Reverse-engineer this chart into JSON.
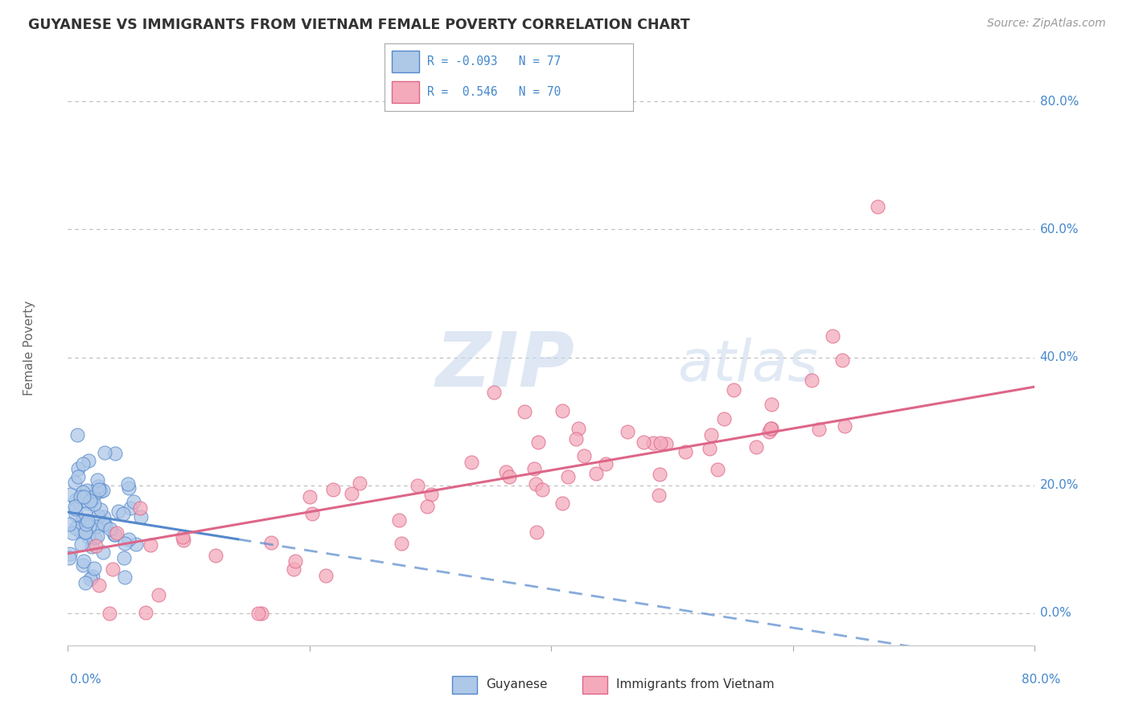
{
  "title": "GUYANESE VS IMMIGRANTS FROM VIETNAM FEMALE POVERTY CORRELATION CHART",
  "source": "Source: ZipAtlas.com",
  "ylabel": "Female Poverty",
  "xmin": 0.0,
  "xmax": 0.8,
  "ymin": -0.05,
  "ymax": 0.88,
  "xtick_vals": [
    0.0,
    0.2,
    0.4,
    0.6,
    0.8
  ],
  "xtick_labels_inner": [
    "",
    "",
    "",
    "",
    ""
  ],
  "ytick_vals": [
    0.0,
    0.2,
    0.4,
    0.6,
    0.8
  ],
  "ytick_labels": [
    "0.0%",
    "20.0%",
    "40.0%",
    "60.0%",
    "80.0%"
  ],
  "bottom_left_label": "0.0%",
  "bottom_right_label": "80.0%",
  "legend_line1": "R = -0.093   N = 77",
  "legend_line2": "R =  0.546   N = 70",
  "color_blue_fill": "#aec8e8",
  "color_blue_edge": "#5588cc",
  "color_blue_line": "#5588cc",
  "color_pink_fill": "#f4aabb",
  "color_pink_edge": "#dd6688",
  "color_pink_line": "#dd6688",
  "color_grid": "#bbbbbb",
  "color_title": "#333333",
  "color_ylabel": "#666666",
  "color_tick_label": "#4488cc",
  "color_source": "#999999",
  "color_legend_text": "#4488cc",
  "watermark_color": "#d8e4f0",
  "background": "#ffffff"
}
